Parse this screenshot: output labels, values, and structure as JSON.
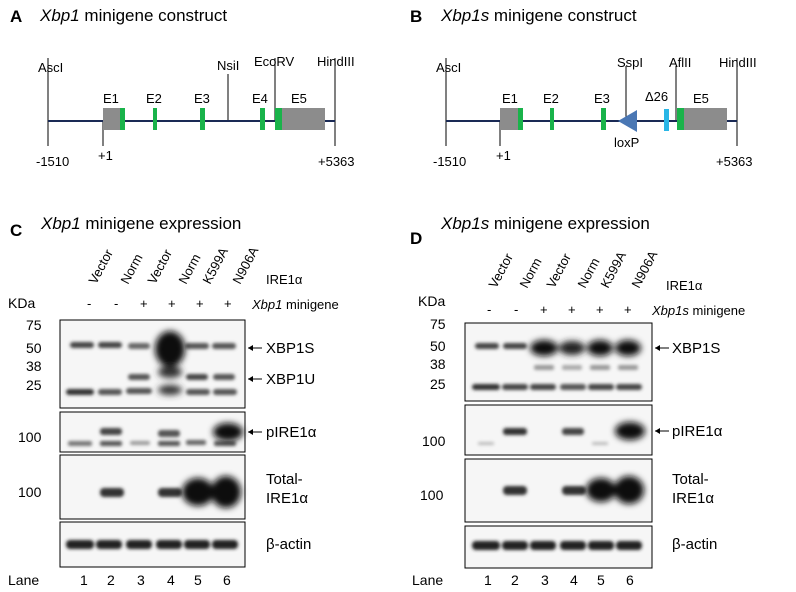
{
  "panels": {
    "A": {
      "letter": "A",
      "title_italic": "Xbp1",
      "title_rest": " minigene  construct",
      "sites": [
        "AscI",
        "NsiI",
        "EcoRV",
        "HindIII"
      ],
      "exons": [
        "E1",
        "E2",
        "E3",
        "E4",
        "E5"
      ],
      "coords": [
        "-1510",
        "+1",
        "+5363"
      ]
    },
    "B": {
      "letter": "B",
      "title_italic": "Xbp1s",
      "title_rest": " minigene construct",
      "sites": [
        "AscI",
        "SspI",
        "AflII",
        "HindIII"
      ],
      "delta": "Δ26",
      "loxp": "loxP",
      "exons": [
        "E1",
        "E2",
        "E3",
        "E5"
      ],
      "coords": [
        "-1510",
        "+1",
        "+5363"
      ]
    },
    "C": {
      "letter": "C",
      "title_italic": "Xbp1",
      "title_rest": " minigene  expression",
      "samples": [
        "Vector",
        "Norm",
        "Vector",
        "Norm",
        "K599A",
        "N906A"
      ],
      "ire_label": "IRE1α",
      "kda": "KDa",
      "minigene_row": [
        "-",
        "-",
        "+",
        "+",
        "+",
        "+"
      ],
      "minigene_italic": "Xbp1",
      "minigene_rest": " minigene",
      "markers": [
        "75",
        "50",
        "38",
        "25"
      ],
      "marker_100": "100",
      "bands": {
        "xbp1s": "XBP1S",
        "xbp1u": "XBP1U",
        "pire": "pIRE1α",
        "total1": "Total-",
        "total2": "IRE1α",
        "actin": "β-actin"
      },
      "lane_title": "Lane",
      "lanes": [
        "1",
        "2",
        "3",
        "4",
        "5",
        "6"
      ]
    },
    "D": {
      "letter": "D",
      "title_italic": "Xbp1s",
      "title_rest": " minigene  expression",
      "samples": [
        "Vector",
        "Norm",
        "Vector",
        "Norm",
        "K599A",
        "N906A"
      ],
      "ire_label": "IRE1α",
      "kda": "KDa",
      "minigene_row": [
        "-",
        "-",
        "+",
        "+",
        "+",
        "+"
      ],
      "minigene_italic": "Xbp1s",
      "minigene_rest": " minigene",
      "markers": [
        "75",
        "50",
        "38",
        "25"
      ],
      "marker_100": "100",
      "bands": {
        "xbp1s": "XBP1S",
        "pire": "pIRE1α",
        "total1": "Total-",
        "total2": "IRE1α",
        "actin": "β-actin"
      },
      "lane_title": "Lane",
      "lanes": [
        "1",
        "2",
        "3",
        "4",
        "5",
        "6"
      ]
    }
  },
  "colors": {
    "exon_gray": "#8c8c8c",
    "exon_green": "#19b34a",
    "delta_blue": "#29b6e6",
    "loxp_blue": "#4a77b4",
    "line": "#1a2a55"
  }
}
